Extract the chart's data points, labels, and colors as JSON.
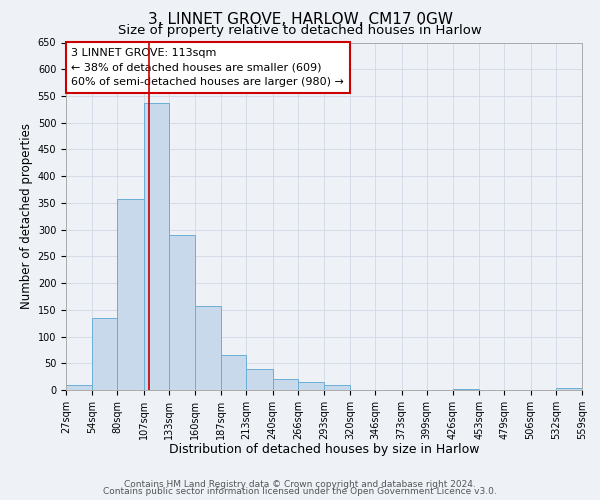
{
  "title": "3, LINNET GROVE, HARLOW, CM17 0GW",
  "subtitle": "Size of property relative to detached houses in Harlow",
  "xlabel": "Distribution of detached houses by size in Harlow",
  "ylabel": "Number of detached properties",
  "bin_edges": [
    27,
    54,
    80,
    107,
    133,
    160,
    187,
    213,
    240,
    266,
    293,
    320,
    346,
    373,
    399,
    426,
    453,
    479,
    506,
    532,
    559
  ],
  "bar_heights": [
    10,
    135,
    358,
    537,
    290,
    157,
    65,
    40,
    20,
    15,
    10,
    0,
    0,
    0,
    0,
    2,
    0,
    0,
    0,
    3
  ],
  "bar_facecolor": "#c8d9ec",
  "bar_edgecolor": "#6aaed6",
  "bar_linewidth": 0.7,
  "grid_color": "#d0d8e4",
  "background_color": "#eef2f7",
  "vline_x": 113,
  "vline_color": "#cc0000",
  "annotation_box_text": "3 LINNET GROVE: 113sqm\n← 38% of detached houses are smaller (609)\n60% of semi-detached houses are larger (980) →",
  "annotation_box_edgecolor": "#cc0000",
  "annotation_box_facecolor": "#ffffff",
  "ylim": [
    0,
    650
  ],
  "yticks": [
    0,
    50,
    100,
    150,
    200,
    250,
    300,
    350,
    400,
    450,
    500,
    550,
    600,
    650
  ],
  "tick_labels": [
    "27sqm",
    "54sqm",
    "80sqm",
    "107sqm",
    "133sqm",
    "160sqm",
    "187sqm",
    "213sqm",
    "240sqm",
    "266sqm",
    "293sqm",
    "320sqm",
    "346sqm",
    "373sqm",
    "399sqm",
    "426sqm",
    "453sqm",
    "479sqm",
    "506sqm",
    "532sqm",
    "559sqm"
  ],
  "footer_line1": "Contains HM Land Registry data © Crown copyright and database right 2024.",
  "footer_line2": "Contains public sector information licensed under the Open Government Licence v3.0.",
  "title_fontsize": 11,
  "subtitle_fontsize": 9.5,
  "xlabel_fontsize": 9,
  "ylabel_fontsize": 8.5,
  "tick_fontsize": 7,
  "annotation_fontsize": 8,
  "footer_fontsize": 6.5
}
